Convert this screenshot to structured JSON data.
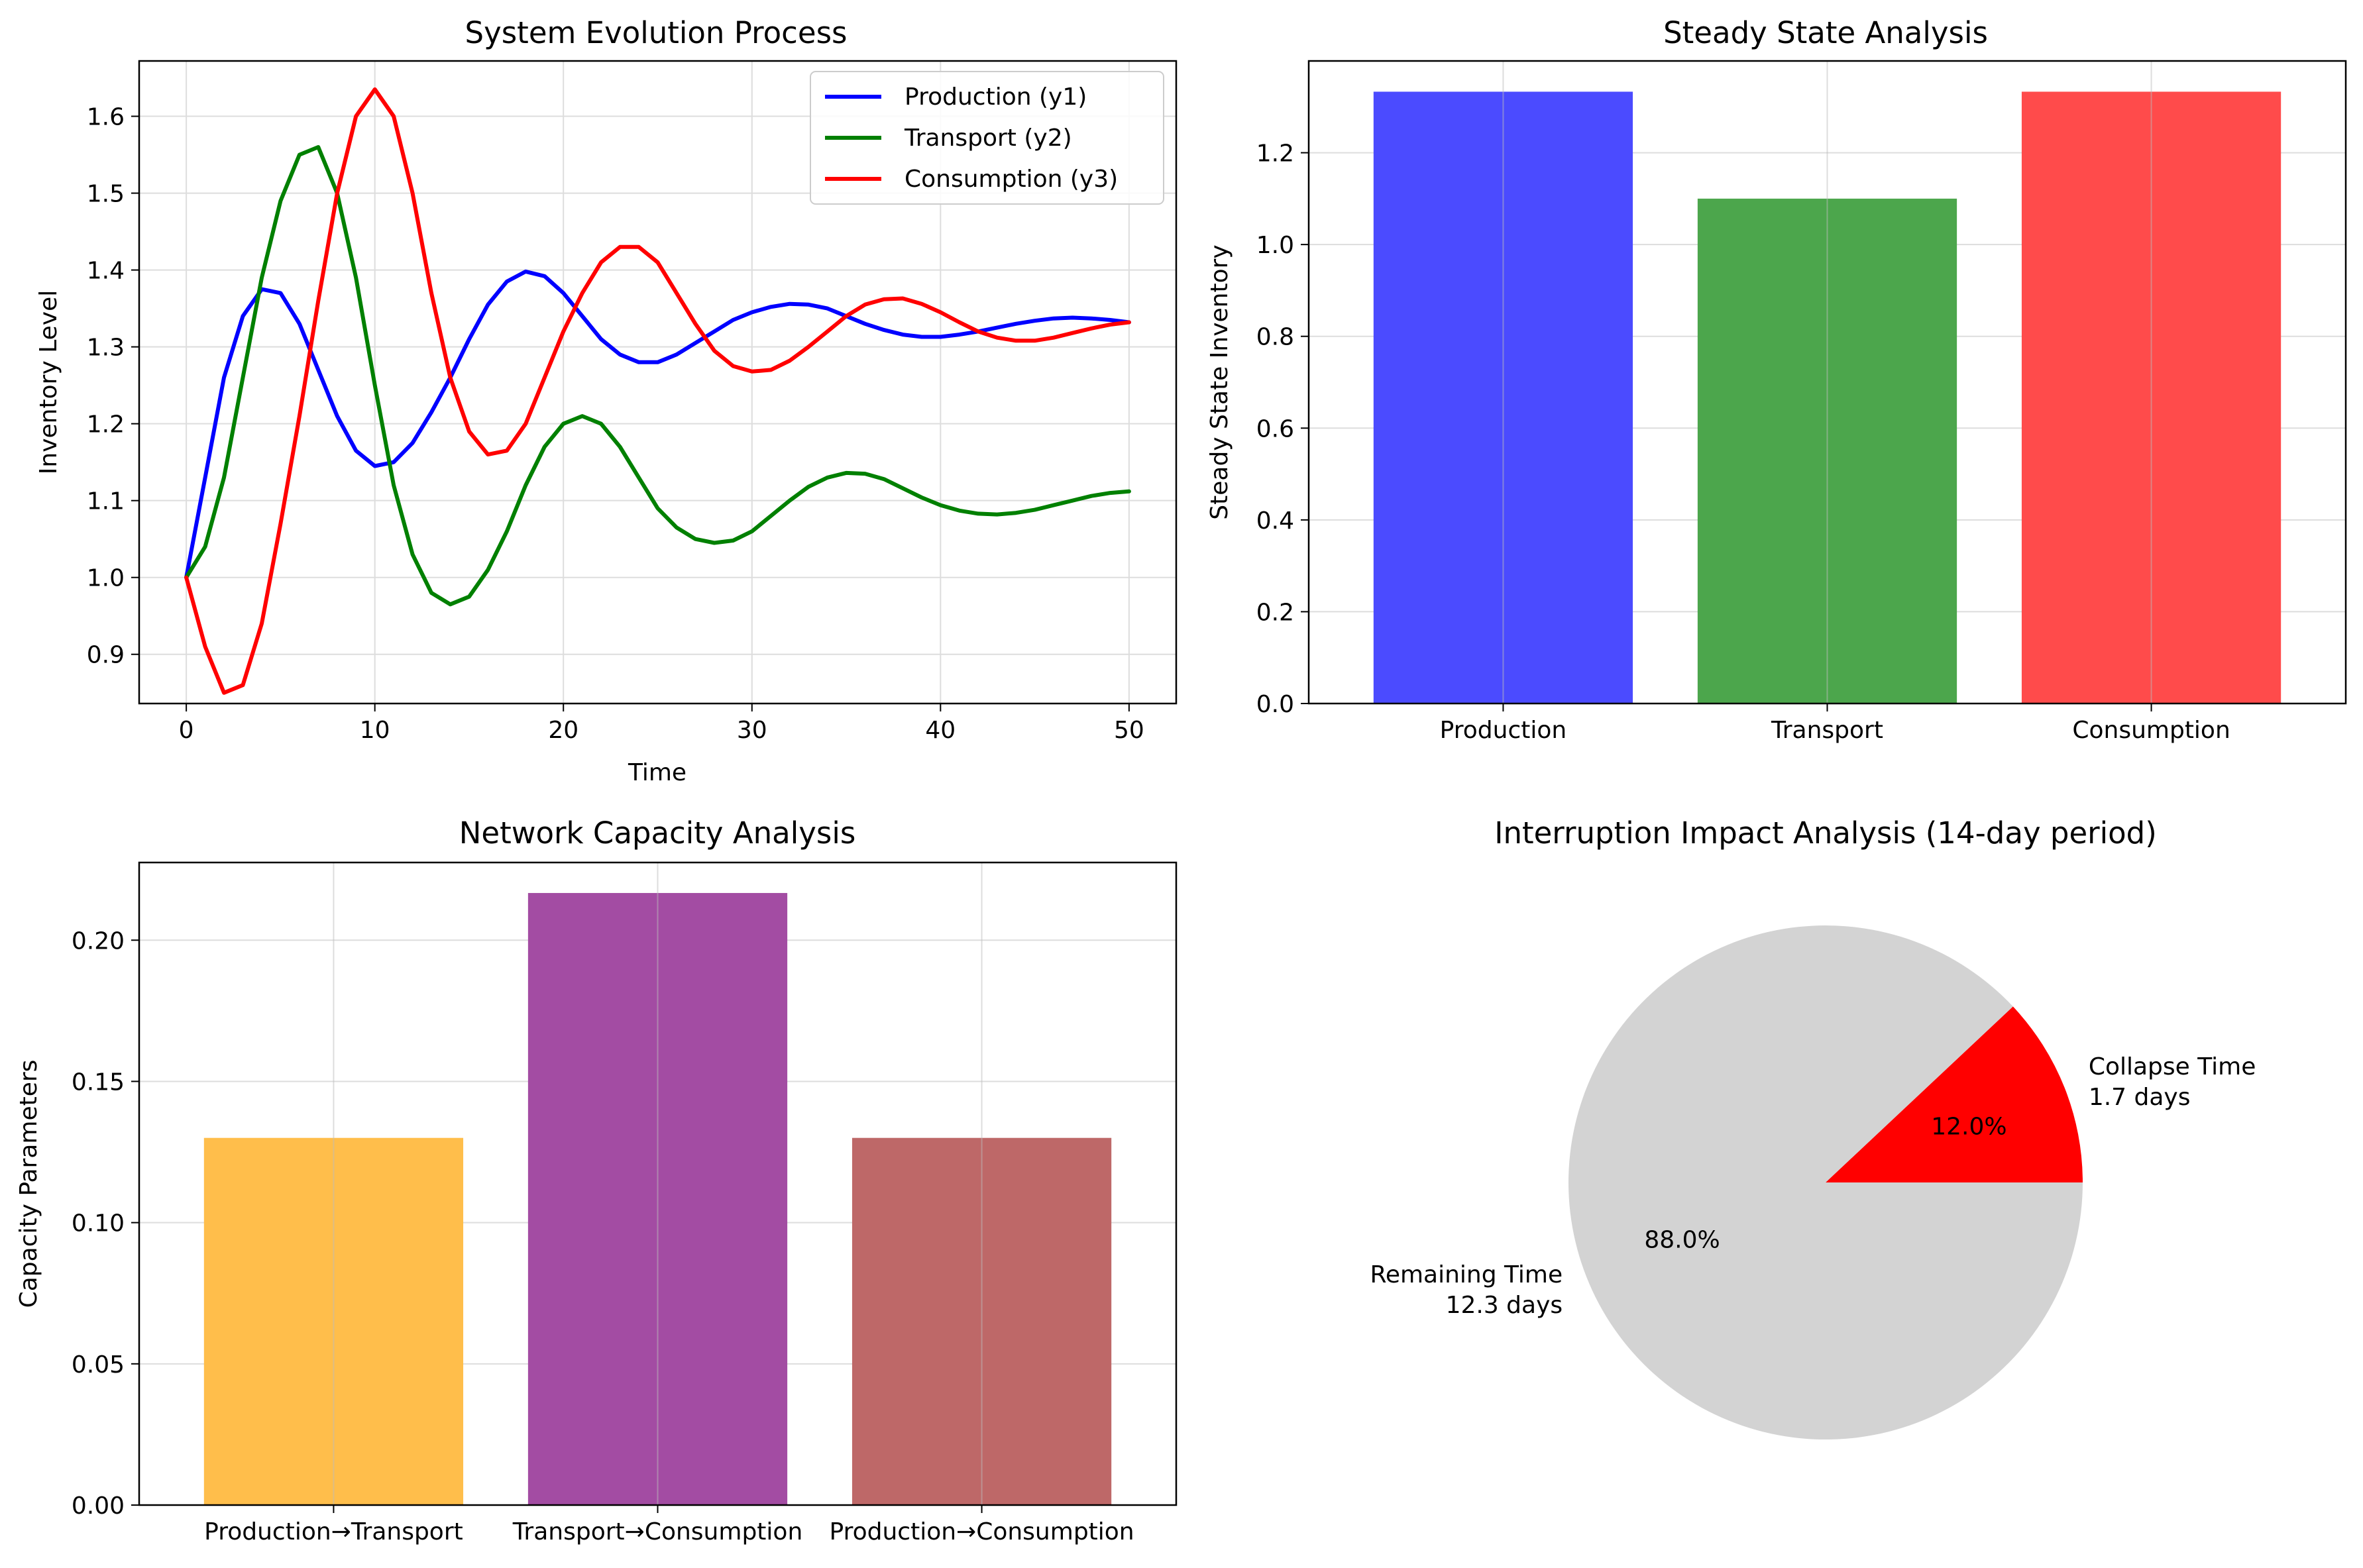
{
  "chart_data": [
    {
      "type": "line",
      "title": "System Evolution Process",
      "xlabel": "Time",
      "ylabel": "Inventory Level",
      "xlim": [
        -2.5,
        52.5
      ],
      "ylim": [
        0.836,
        1.672
      ],
      "xticks": [
        "0",
        "10",
        "20",
        "30",
        "40",
        "50"
      ],
      "xtick_values": [
        0,
        10,
        20,
        30,
        40,
        50
      ],
      "yticks": [
        "0.9",
        "1.0",
        "1.1",
        "1.2",
        "1.3",
        "1.4",
        "1.5",
        "1.6"
      ],
      "ytick_values": [
        0.9,
        1.0,
        1.1,
        1.2,
        1.3,
        1.4,
        1.5,
        1.6
      ],
      "grid": true,
      "legend": "top-right",
      "series": [
        {
          "name": "Production (y1)",
          "color": "#0000ff",
          "points": [
            [
              0,
              1.0
            ],
            [
              1,
              1.13
            ],
            [
              2,
              1.26
            ],
            [
              3,
              1.34
            ],
            [
              4,
              1.375
            ],
            [
              5,
              1.37
            ],
            [
              6,
              1.33
            ],
            [
              7,
              1.27
            ],
            [
              8,
              1.21
            ],
            [
              9,
              1.165
            ],
            [
              10,
              1.145
            ],
            [
              11,
              1.15
            ],
            [
              12,
              1.175
            ],
            [
              13,
              1.215
            ],
            [
              14,
              1.26
            ],
            [
              15,
              1.31
            ],
            [
              16,
              1.355
            ],
            [
              17,
              1.385
            ],
            [
              18,
              1.398
            ],
            [
              19,
              1.392
            ],
            [
              20,
              1.37
            ],
            [
              21,
              1.34
            ],
            [
              22,
              1.31
            ],
            [
              23,
              1.29
            ],
            [
              24,
              1.28
            ],
            [
              25,
              1.28
            ],
            [
              26,
              1.29
            ],
            [
              27,
              1.305
            ],
            [
              28,
              1.32
            ],
            [
              29,
              1.335
            ],
            [
              30,
              1.345
            ],
            [
              31,
              1.352
            ],
            [
              32,
              1.356
            ],
            [
              33,
              1.355
            ],
            [
              34,
              1.35
            ],
            [
              35,
              1.34
            ],
            [
              36,
              1.33
            ],
            [
              37,
              1.322
            ],
            [
              38,
              1.316
            ],
            [
              39,
              1.313
            ],
            [
              40,
              1.313
            ],
            [
              41,
              1.316
            ],
            [
              42,
              1.32
            ],
            [
              43,
              1.325
            ],
            [
              44,
              1.33
            ],
            [
              45,
              1.334
            ],
            [
              46,
              1.337
            ],
            [
              47,
              1.338
            ],
            [
              48,
              1.337
            ],
            [
              49,
              1.335
            ],
            [
              50,
              1.332
            ]
          ]
        },
        {
          "name": "Transport (y2)",
          "color": "#008000",
          "points": [
            [
              0,
              1.0
            ],
            [
              1,
              1.04
            ],
            [
              2,
              1.13
            ],
            [
              3,
              1.26
            ],
            [
              4,
              1.39
            ],
            [
              5,
              1.49
            ],
            [
              6,
              1.55
            ],
            [
              7,
              1.56
            ],
            [
              8,
              1.5
            ],
            [
              9,
              1.39
            ],
            [
              10,
              1.25
            ],
            [
              11,
              1.12
            ],
            [
              12,
              1.03
            ],
            [
              13,
              0.98
            ],
            [
              14,
              0.965
            ],
            [
              15,
              0.975
            ],
            [
              16,
              1.01
            ],
            [
              17,
              1.06
            ],
            [
              18,
              1.12
            ],
            [
              19,
              1.17
            ],
            [
              20,
              1.2
            ],
            [
              21,
              1.21
            ],
            [
              22,
              1.2
            ],
            [
              23,
              1.17
            ],
            [
              24,
              1.13
            ],
            [
              25,
              1.09
            ],
            [
              26,
              1.065
            ],
            [
              27,
              1.05
            ],
            [
              28,
              1.045
            ],
            [
              29,
              1.048
            ],
            [
              30,
              1.06
            ],
            [
              31,
              1.08
            ],
            [
              32,
              1.1
            ],
            [
              33,
              1.118
            ],
            [
              34,
              1.13
            ],
            [
              35,
              1.136
            ],
            [
              36,
              1.135
            ],
            [
              37,
              1.128
            ],
            [
              38,
              1.116
            ],
            [
              39,
              1.104
            ],
            [
              40,
              1.094
            ],
            [
              41,
              1.087
            ],
            [
              42,
              1.083
            ],
            [
              43,
              1.082
            ],
            [
              44,
              1.084
            ],
            [
              45,
              1.088
            ],
            [
              46,
              1.094
            ],
            [
              47,
              1.1
            ],
            [
              48,
              1.106
            ],
            [
              49,
              1.11
            ],
            [
              50,
              1.112
            ]
          ]
        },
        {
          "name": "Consumption (y3)",
          "color": "#ff0000",
          "points": [
            [
              0,
              1.0
            ],
            [
              1,
              0.91
            ],
            [
              2,
              0.85
            ],
            [
              3,
              0.86
            ],
            [
              4,
              0.94
            ],
            [
              5,
              1.07
            ],
            [
              6,
              1.21
            ],
            [
              7,
              1.36
            ],
            [
              8,
              1.5
            ],
            [
              9,
              1.6
            ],
            [
              10,
              1.635
            ],
            [
              11,
              1.6
            ],
            [
              12,
              1.5
            ],
            [
              13,
              1.37
            ],
            [
              14,
              1.26
            ],
            [
              15,
              1.19
            ],
            [
              16,
              1.16
            ],
            [
              17,
              1.165
            ],
            [
              18,
              1.2
            ],
            [
              19,
              1.26
            ],
            [
              20,
              1.32
            ],
            [
              21,
              1.37
            ],
            [
              22,
              1.41
            ],
            [
              23,
              1.43
            ],
            [
              24,
              1.43
            ],
            [
              25,
              1.41
            ],
            [
              26,
              1.37
            ],
            [
              27,
              1.33
            ],
            [
              28,
              1.295
            ],
            [
              29,
              1.275
            ],
            [
              30,
              1.268
            ],
            [
              31,
              1.27
            ],
            [
              32,
              1.282
            ],
            [
              33,
              1.3
            ],
            [
              34,
              1.32
            ],
            [
              35,
              1.34
            ],
            [
              36,
              1.355
            ],
            [
              37,
              1.362
            ],
            [
              38,
              1.363
            ],
            [
              39,
              1.356
            ],
            [
              40,
              1.345
            ],
            [
              41,
              1.332
            ],
            [
              42,
              1.32
            ],
            [
              43,
              1.312
            ],
            [
              44,
              1.308
            ],
            [
              45,
              1.308
            ],
            [
              46,
              1.312
            ],
            [
              47,
              1.318
            ],
            [
              48,
              1.324
            ],
            [
              49,
              1.329
            ],
            [
              50,
              1.332
            ]
          ]
        }
      ]
    },
    {
      "type": "bar",
      "title": "Steady State Analysis",
      "xlabel": "",
      "ylabel": "Steady State Inventory",
      "ylim": [
        0,
        1.4
      ],
      "yticks": [
        "0.0",
        "0.2",
        "0.4",
        "0.6",
        "0.8",
        "1.0",
        "1.2"
      ],
      "ytick_values": [
        0.0,
        0.2,
        0.4,
        0.6,
        0.8,
        1.0,
        1.2
      ],
      "grid": true,
      "categories": [
        "Production",
        "Transport",
        "Consumption"
      ],
      "values": [
        1.333,
        1.1,
        1.333
      ],
      "colors": [
        "#4b4bff",
        "#4ca64c",
        "#ff4b4b"
      ]
    },
    {
      "type": "bar",
      "title": "Network Capacity Analysis",
      "xlabel": "",
      "ylabel": "Capacity Parameters",
      "ylim": [
        0,
        0.2275
      ],
      "yticks": [
        "0.00",
        "0.05",
        "0.10",
        "0.15",
        "0.20"
      ],
      "ytick_values": [
        0.0,
        0.05,
        0.1,
        0.15,
        0.2
      ],
      "grid": true,
      "categories": [
        "Production→Transport",
        "Transport→Consumption",
        "Production→Consumption"
      ],
      "values": [
        0.13,
        0.2167,
        0.13
      ],
      "colors": [
        "#ffbe4b",
        "#a34ca3",
        "#be6868"
      ]
    },
    {
      "type": "pie",
      "title": "Interruption Impact Analysis (14-day period)",
      "slices": [
        {
          "label": "Collapse Time",
          "sublabel": "1.7 days",
          "value": 12.0,
          "pct_label": "12.0%",
          "color": "#ff0000"
        },
        {
          "label": "Remaining Time",
          "sublabel": "12.3 days",
          "value": 88.0,
          "pct_label": "88.0%",
          "color": "#d3d3d3"
        }
      ]
    }
  ]
}
